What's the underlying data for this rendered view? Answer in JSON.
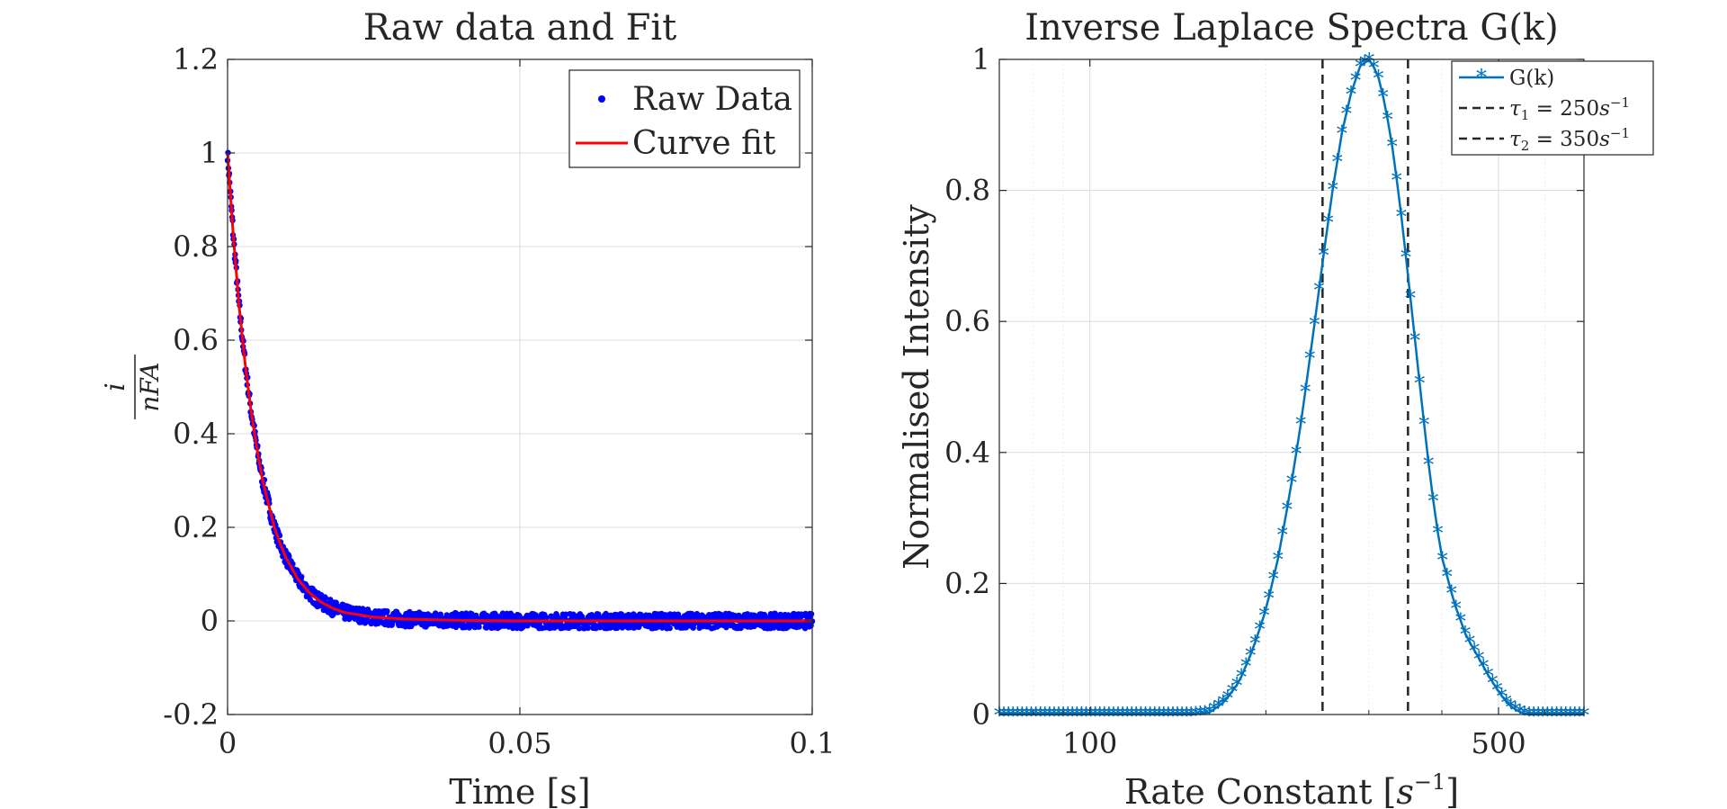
{
  "chart_data": [
    {
      "type": "scatter",
      "title": "Raw data and Fit",
      "xlabel": "Time [s]",
      "ylabel": "i/nFA",
      "xlim": [
        0,
        0.1
      ],
      "ylim": [
        -0.2,
        1.2
      ],
      "xticks": [
        "0",
        "0.05",
        "0.1"
      ],
      "yticks": [
        "-0.2",
        "0",
        "0.2",
        "0.4",
        "0.6",
        "0.8",
        "1",
        "1.2"
      ],
      "grid": true,
      "legend_position": "top-right",
      "series": [
        {
          "name": "Raw Data",
          "style": "markers",
          "color": "#0000ff",
          "x": [
            0,
            0.001,
            0.002,
            0.003,
            0.004,
            0.005,
            0.006,
            0.007,
            0.008,
            0.009,
            0.01,
            0.012,
            0.014,
            0.016,
            0.018,
            0.02,
            0.025,
            0.03,
            0.04,
            0.05,
            0.06,
            0.07,
            0.08,
            0.09,
            0.1
          ],
          "y": [
            1.0,
            0.82,
            0.67,
            0.55,
            0.45,
            0.37,
            0.3,
            0.25,
            0.2,
            0.165,
            0.135,
            0.09,
            0.06,
            0.04,
            0.027,
            0.018,
            0.008,
            0.004,
            0.001,
            0.0,
            0.0,
            0.0,
            0.0,
            0.0,
            0.0
          ]
        },
        {
          "name": "Curve fit",
          "style": "line",
          "color": "#ff0000",
          "x": [
            0,
            0.001,
            0.002,
            0.003,
            0.004,
            0.005,
            0.006,
            0.007,
            0.008,
            0.009,
            0.01,
            0.012,
            0.014,
            0.016,
            0.018,
            0.02,
            0.025,
            0.03,
            0.04,
            0.05,
            0.06,
            0.07,
            0.08,
            0.09,
            0.1
          ],
          "y": [
            1.0,
            0.82,
            0.67,
            0.55,
            0.45,
            0.37,
            0.3,
            0.25,
            0.2,
            0.165,
            0.135,
            0.09,
            0.06,
            0.04,
            0.027,
            0.018,
            0.008,
            0.004,
            0.001,
            0.0,
            0.0,
            0.0,
            0.0,
            0.0,
            0.0
          ]
        }
      ]
    },
    {
      "type": "line",
      "title": "Inverse Laplace Spectra G(k)",
      "xlabel": "Rate Constant [s^-1]",
      "ylabel": "Normalised Intensity",
      "xscale": "log",
      "xlim": [
        70,
        700
      ],
      "ylim": [
        0,
        1
      ],
      "xticks": [
        "100",
        "500"
      ],
      "yticks": [
        "0",
        "0.2",
        "0.4",
        "0.6",
        "0.8",
        "1"
      ],
      "grid": true,
      "legend_position": "top-right",
      "series": [
        {
          "name": "G(k)",
          "style": "line-star",
          "color": "#0072bd",
          "x": [
            70,
            80,
            90,
            100,
            110,
            120,
            130,
            140,
            150,
            160,
            170,
            180,
            190,
            200,
            210,
            220,
            230,
            240,
            250,
            260,
            270,
            280,
            290,
            300,
            310,
            320,
            330,
            340,
            350,
            360,
            370,
            380,
            390,
            400,
            420,
            440,
            460,
            480,
            500,
            520,
            540,
            560,
            600,
            650,
            700
          ],
          "y": [
            0,
            0,
            0,
            0,
            0,
            0,
            0,
            0,
            0,
            0.003,
            0.02,
            0.05,
            0.1,
            0.16,
            0.24,
            0.34,
            0.45,
            0.57,
            0.69,
            0.8,
            0.89,
            0.95,
            0.99,
            1.0,
            0.98,
            0.93,
            0.86,
            0.77,
            0.67,
            0.57,
            0.47,
            0.38,
            0.3,
            0.24,
            0.17,
            0.12,
            0.09,
            0.06,
            0.035,
            0.015,
            0.005,
            0,
            0,
            0,
            0
          ]
        },
        {
          "name": "τ1 = 250s^-1",
          "style": "dashed-vline",
          "color": "#262626",
          "x": 250
        },
        {
          "name": "τ2 = 350s^-1",
          "style": "dashed-vline",
          "color": "#262626",
          "x": 350
        }
      ]
    }
  ]
}
